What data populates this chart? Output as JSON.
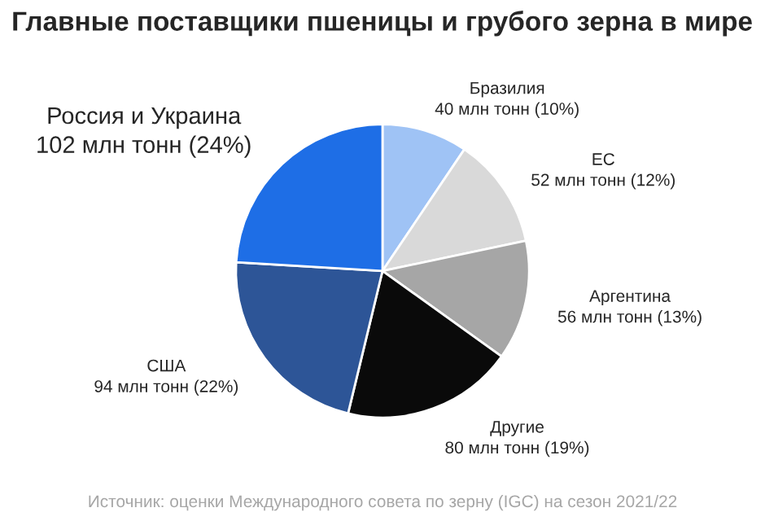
{
  "chart_data": {
    "type": "pie",
    "title": "Главные поставщики пшеницы и грубого зерна в мире",
    "categories": [
      "Бразилия",
      "ЕС",
      "Аргентина",
      "Другие",
      "США",
      "Россия и Украина"
    ],
    "values": [
      40,
      52,
      56,
      80,
      94,
      102
    ],
    "value_labels": [
      "40 млн тонн (10%)",
      "52 млн тонн (12%)",
      "56 млн тонн (13%)",
      "80 млн тонн (19%)",
      "94 млн тонн (22%)",
      "102 млн тонн (24%)"
    ],
    "colors": [
      "#9fc3f5",
      "#d9d9d9",
      "#a6a6a6",
      "#0a0a0a",
      "#2d5597",
      "#1e6ee6"
    ],
    "annotations": [
      "Источник: оценки Международного совета по зерну (IGC) на сезон 2021/22"
    ],
    "legend": false
  }
}
